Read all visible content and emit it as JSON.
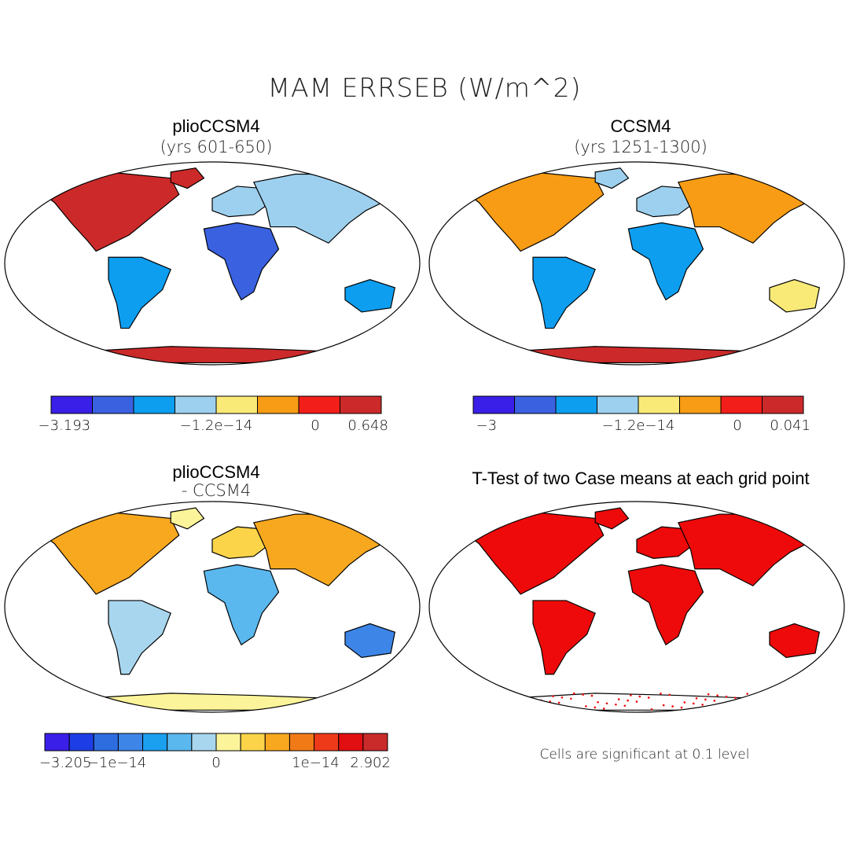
{
  "title": "MAM ERRSEB (W/m^2)",
  "note": "Cells are significant at 0.1 level",
  "chart_data": [
    {
      "type": "heatmap",
      "title": "plioCCSM4",
      "subtitle": "(yrs 601-650)",
      "colorbar": {
        "colors": [
          "#3a1fe8",
          "#3a61e0",
          "#0d9ef0",
          "#9dd0ee",
          "#f9ea78",
          "#f79c14",
          "#f21e1a",
          "#cc2a2a"
        ],
        "tick_labels": [
          "-3.193",
          "-1.2e-14",
          "0",
          "0.648"
        ]
      }
    },
    {
      "type": "heatmap",
      "title": "CCSM4",
      "subtitle": "(yrs 1251-1300)",
      "colorbar": {
        "colors": [
          "#3a1fe8",
          "#3a61e0",
          "#0d9ef0",
          "#9dd0ee",
          "#f9ea78",
          "#f79c14",
          "#f21e1a",
          "#cc2a2a"
        ],
        "tick_labels": [
          "-3",
          "-1.2e-14",
          "0",
          "0.041"
        ]
      }
    },
    {
      "type": "heatmap",
      "title": "plioCCSM4",
      "subtitle": "- CCSM4",
      "colorbar": {
        "colors": [
          "#3a1fe8",
          "#1d3ee6",
          "#2d6de0",
          "#3d86e8",
          "#1ba0f0",
          "#5ab8ee",
          "#a8d6ee",
          "#fbf49a",
          "#fbd44a",
          "#f8a81e",
          "#f27a16",
          "#ef3a1a",
          "#e10f12",
          "#c92a2a"
        ],
        "tick_labels": [
          "-3.205",
          "-1e-14",
          "0",
          "1e-14",
          "2.902"
        ]
      }
    },
    {
      "type": "heatmap",
      "title": "T-Test of two Case means at each grid point",
      "significant_color": "#ee0a0a"
    }
  ]
}
